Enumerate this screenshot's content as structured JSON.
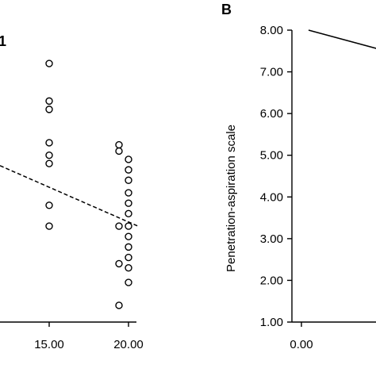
{
  "chart_data": [
    {
      "panel": "A",
      "type": "scatter",
      "panel_label_visible": "1",
      "x_ticks": [
        "15.00",
        "20.00"
      ],
      "x_tick_values": [
        15,
        20
      ],
      "xlim": [
        11.9,
        20.8
      ],
      "ylim": [
        1.0,
        8.0
      ],
      "series": [
        {
          "marker": "open-circle",
          "points": [
            {
              "x": 15,
              "y": 7.2
            },
            {
              "x": 15,
              "y": 6.3
            },
            {
              "x": 15,
              "y": 6.1
            },
            {
              "x": 15,
              "y": 5.3
            },
            {
              "x": 15,
              "y": 5.0
            },
            {
              "x": 15,
              "y": 4.8
            },
            {
              "x": 15,
              "y": 3.8
            },
            {
              "x": 15,
              "y": 3.3
            },
            {
              "x": 19.4,
              "y": 5.25
            },
            {
              "x": 19.4,
              "y": 5.1
            },
            {
              "x": 19.4,
              "y": 3.3
            },
            {
              "x": 19.4,
              "y": 2.4
            },
            {
              "x": 19.4,
              "y": 1.4
            },
            {
              "x": 20,
              "y": 4.9
            },
            {
              "x": 20,
              "y": 4.65
            },
            {
              "x": 20,
              "y": 4.4
            },
            {
              "x": 20,
              "y": 4.1
            },
            {
              "x": 20,
              "y": 3.85
            },
            {
              "x": 20,
              "y": 3.6
            },
            {
              "x": 20,
              "y": 3.3
            },
            {
              "x": 20,
              "y": 3.05
            },
            {
              "x": 20,
              "y": 2.8
            },
            {
              "x": 20,
              "y": 2.55
            },
            {
              "x": 20,
              "y": 2.3
            },
            {
              "x": 20,
              "y": 1.95
            }
          ]
        }
      ],
      "fit_line": {
        "style": "dashed",
        "x": [
          11.9,
          20.6
        ],
        "y": [
          4.75,
          3.3
        ]
      }
    },
    {
      "panel": "B",
      "type": "line",
      "panel_letter": "B",
      "ylabel": "Penetration-aspiration scale",
      "y_ticks": [
        "8.00",
        "7.00",
        "6.00",
        "5.00",
        "4.00",
        "3.00",
        "2.00",
        "1.00"
      ],
      "y_tick_values": [
        8,
        7,
        6,
        5,
        4,
        3,
        2,
        1
      ],
      "x_ticks": [
        "0.00"
      ],
      "x_tick_values": [
        0
      ],
      "ylim": [
        1.0,
        8.0
      ],
      "xlim": [
        -0.2,
        1.0
      ],
      "fit_line": {
        "style": "solid",
        "x": [
          0.03,
          0.55
        ],
        "y": [
          8.0,
          7.2
        ]
      }
    }
  ]
}
